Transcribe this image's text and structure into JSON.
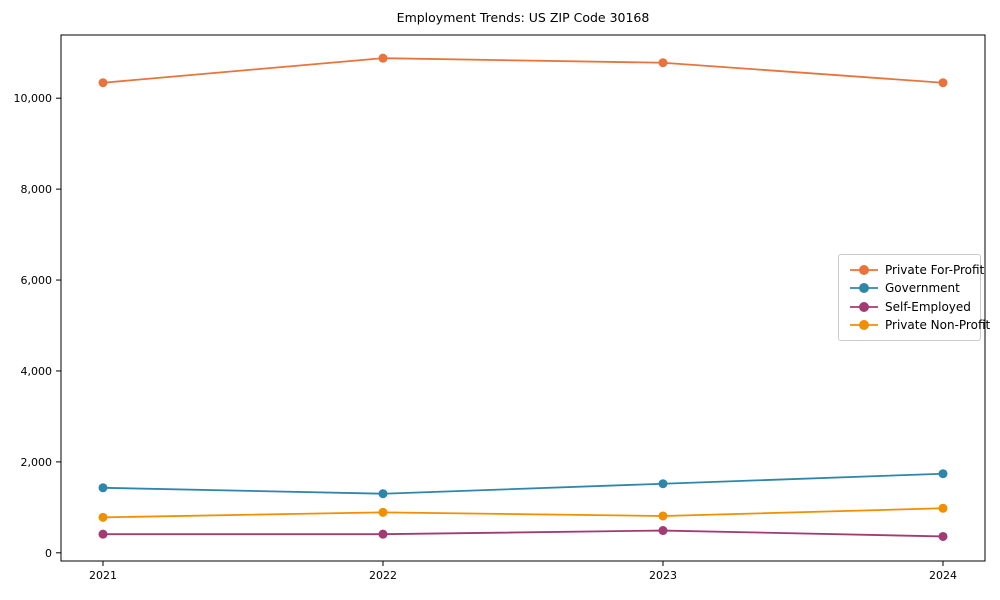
{
  "figure": {
    "background_color": "#ffffff",
    "text_color": "#000000",
    "spine_color": "#000000",
    "legend_border_color": "#cccccc"
  },
  "chart_data": {
    "type": "line",
    "title": "Employment Trends: US ZIP Code 30168",
    "xlabel": "",
    "ylabel": "",
    "x": [
      "2021",
      "2022",
      "2023",
      "2024"
    ],
    "series": [
      {
        "name": "Private For-Profit",
        "color": "#E8743B",
        "values": [
          10340,
          10880,
          10780,
          10340
        ]
      },
      {
        "name": "Government",
        "color": "#2E86AB",
        "values": [
          1430,
          1300,
          1520,
          1740
        ]
      },
      {
        "name": "Self-Employed",
        "color": "#A23B72",
        "values": [
          410,
          410,
          490,
          360
        ]
      },
      {
        "name": "Private Non-Profit",
        "color": "#F18F01",
        "values": [
          780,
          890,
          810,
          980
        ]
      }
    ],
    "yticks": [
      {
        "value": 0,
        "label": "0"
      },
      {
        "value": 2000,
        "label": "2,000"
      },
      {
        "value": 4000,
        "label": "4,000"
      },
      {
        "value": 6000,
        "label": "6,000"
      },
      {
        "value": 8000,
        "label": "8,000"
      },
      {
        "value": 10000,
        "label": "10,000"
      }
    ],
    "xlim": [
      -0.15,
      3.15
    ],
    "ylim": [
      -180,
      11390
    ],
    "grid": false,
    "legend_position": "center right",
    "marker": "circle",
    "marker_radius": 4.5,
    "line_width": 1.8
  }
}
